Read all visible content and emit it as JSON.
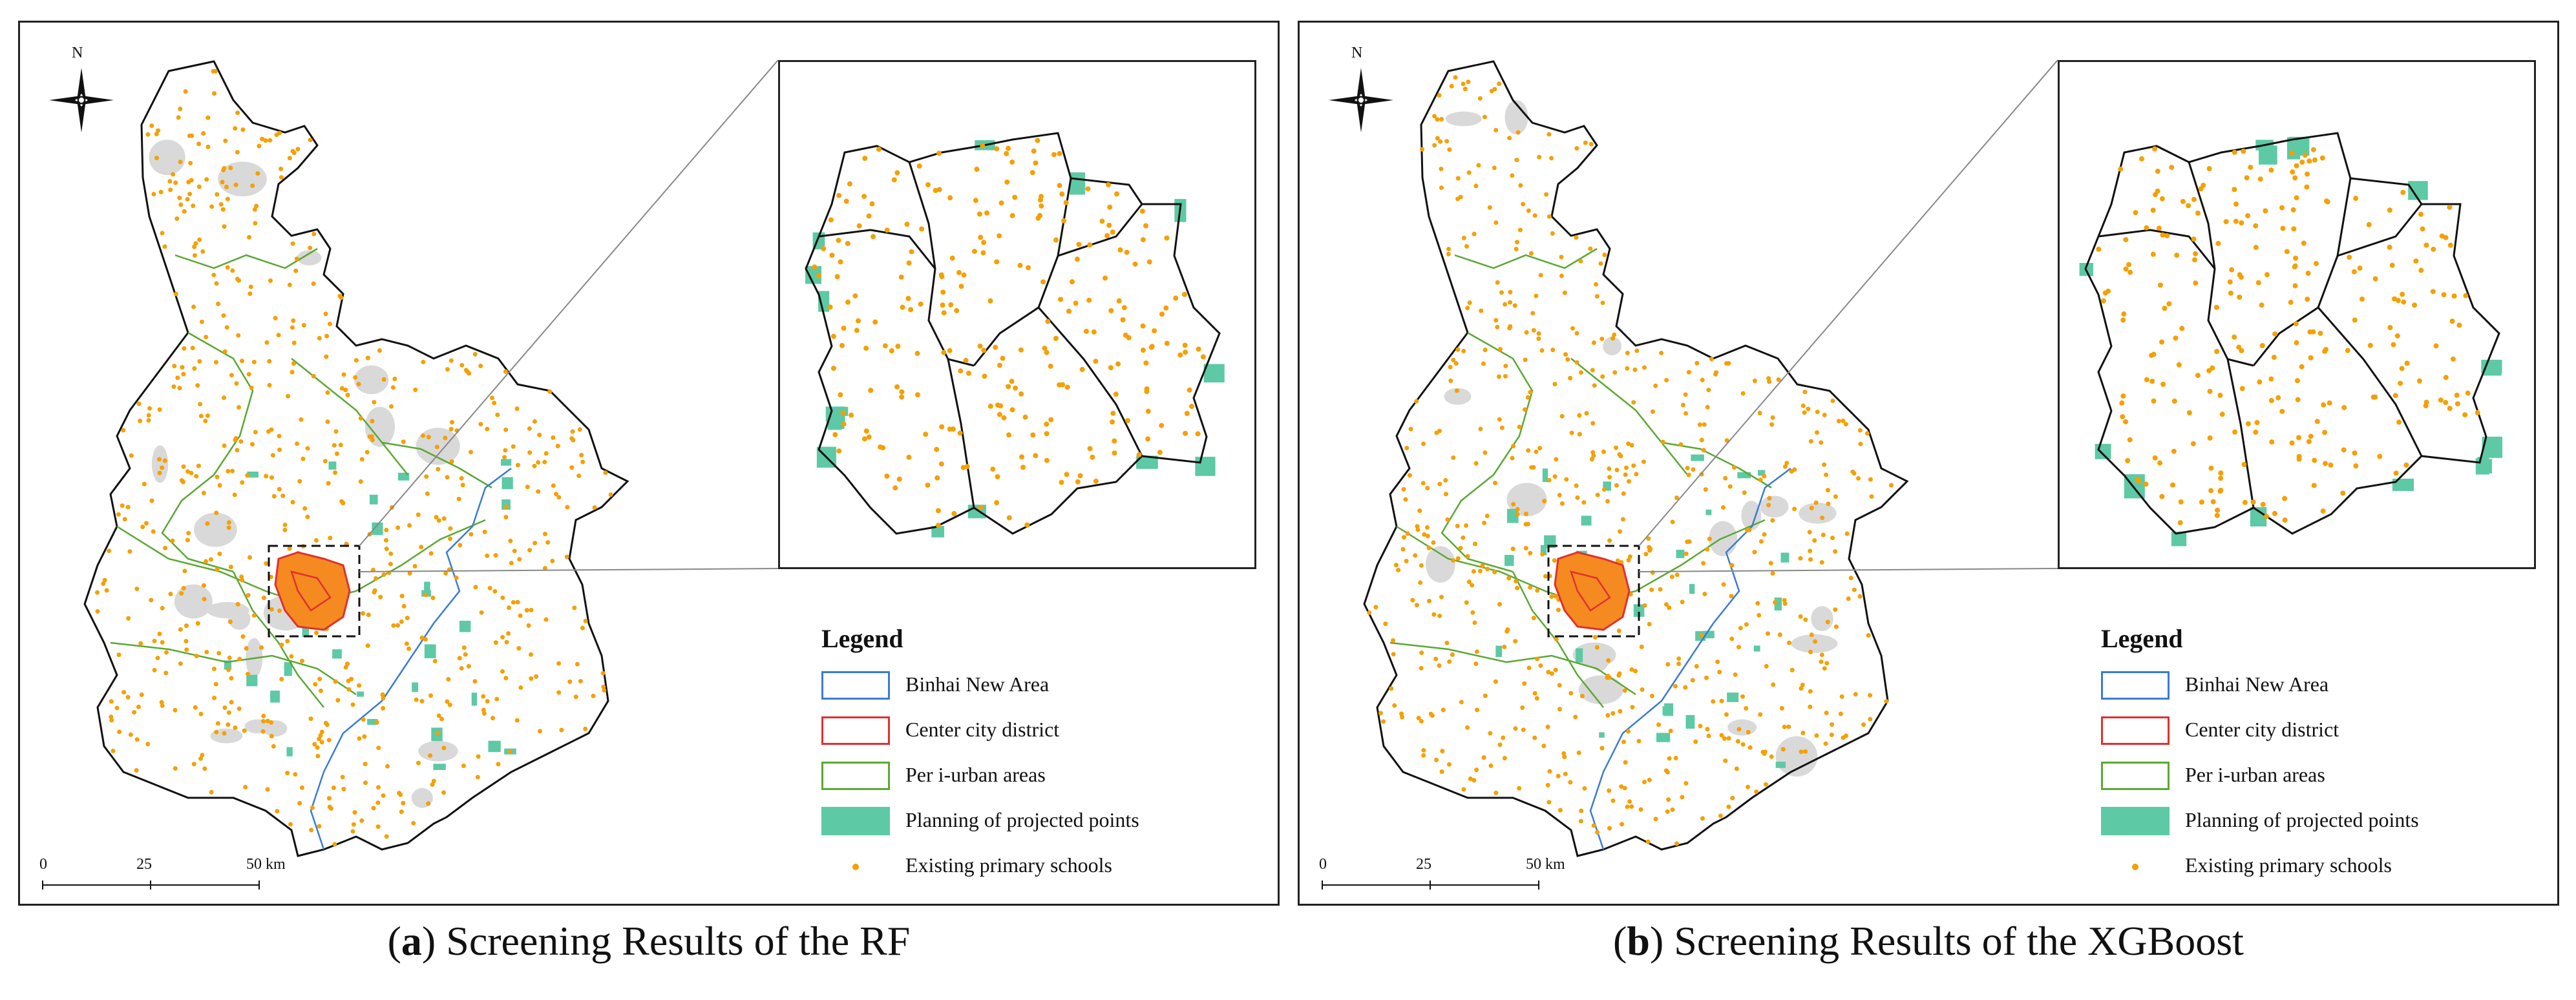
{
  "compass": {
    "north_label": "N",
    "icon": "north-arrow-icon"
  },
  "legend": {
    "title": "Legend",
    "items": [
      {
        "label": "Binhai New Area",
        "stroke": "#3a7bd5",
        "fill": "#ffffff"
      },
      {
        "label": "Center city district",
        "stroke": "#e03030",
        "fill": "#ffffff"
      },
      {
        "label": "Per i-urban areas",
        "stroke": "#5aa832",
        "fill": "#ffffff"
      },
      {
        "label": "Planning of projected points",
        "stroke": "#5dc9a5",
        "fill": "#5dc9a5"
      },
      {
        "label": "Existing primary schools",
        "stroke": "#f5a000",
        "fill": "#f5a000"
      }
    ]
  },
  "scalebar": {
    "ticks": [
      "0",
      "25",
      "50 km"
    ]
  },
  "colors": {
    "school": "#f5a000",
    "planning": "#5dc9a5",
    "binhai": "#3a7bd5",
    "center": "#e03030",
    "periurban": "#5aa832",
    "urban_gray": "#d9d9d9",
    "outline": "#111111"
  },
  "panels": [
    {
      "id": "a",
      "letter": "a",
      "caption": "Screening Results of the RF"
    },
    {
      "id": "b",
      "letter": "b",
      "caption": "Screening Results of the XGBoost"
    }
  ]
}
